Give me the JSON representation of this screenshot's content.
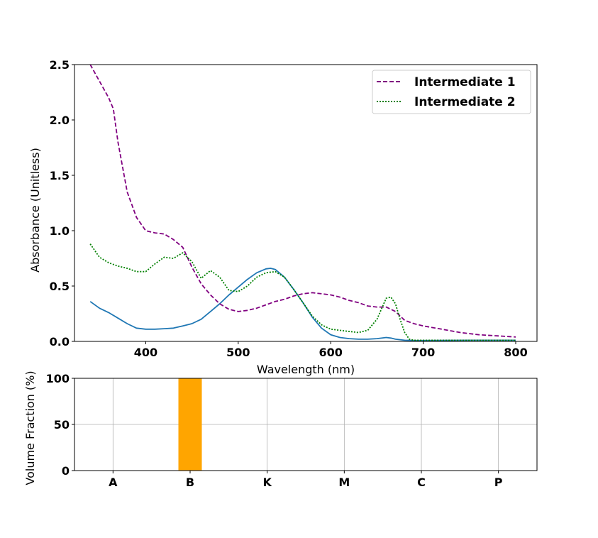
{
  "chart_data": [
    {
      "type": "line",
      "xlabel": "Wavelength (nm)",
      "ylabel": "Absorbance (Unitless)",
      "xlim": [
        323,
        823
      ],
      "ylim": [
        0,
        2.5
      ],
      "x_ticks": [
        400,
        500,
        600,
        700,
        800
      ],
      "y_ticks": [
        0.0,
        0.5,
        1.0,
        1.5,
        2.0,
        2.5
      ],
      "x_tick_labels": [
        "400",
        "500",
        "600",
        "700",
        "800"
      ],
      "y_tick_labels": [
        "0.0",
        "0.5",
        "1.0",
        "1.5",
        "2.0",
        "2.5"
      ],
      "grid": false,
      "legend_position": "top-right",
      "series": [
        {
          "name": "",
          "color": "#1f77b4",
          "style": "solid",
          "x": [
            340,
            350,
            360,
            370,
            380,
            390,
            400,
            410,
            420,
            430,
            440,
            450,
            460,
            470,
            480,
            490,
            500,
            510,
            520,
            530,
            535,
            540,
            550,
            560,
            570,
            580,
            590,
            600,
            610,
            620,
            630,
            640,
            650,
            660,
            665,
            670,
            680,
            690,
            700,
            750,
            800
          ],
          "y": [
            0.36,
            0.3,
            0.26,
            0.21,
            0.16,
            0.12,
            0.11,
            0.11,
            0.115,
            0.12,
            0.14,
            0.16,
            0.2,
            0.27,
            0.34,
            0.42,
            0.49,
            0.56,
            0.62,
            0.655,
            0.66,
            0.65,
            0.58,
            0.47,
            0.35,
            0.22,
            0.12,
            0.06,
            0.035,
            0.025,
            0.02,
            0.02,
            0.025,
            0.035,
            0.03,
            0.02,
            0.01,
            0.008,
            0.008,
            0.01,
            0.01
          ]
        },
        {
          "name": "Intermediate 1",
          "color": "#800080",
          "style": "dashed",
          "x": [
            340,
            350,
            360,
            365,
            370,
            380,
            390,
            400,
            410,
            420,
            430,
            440,
            450,
            460,
            470,
            480,
            490,
            500,
            510,
            520,
            530,
            540,
            550,
            560,
            570,
            580,
            590,
            600,
            610,
            620,
            630,
            640,
            650,
            660,
            670,
            680,
            690,
            700,
            720,
            740,
            760,
            780,
            800
          ],
          "y": [
            2.5,
            2.35,
            2.2,
            2.1,
            1.8,
            1.35,
            1.12,
            1.0,
            0.98,
            0.97,
            0.92,
            0.85,
            0.67,
            0.52,
            0.42,
            0.34,
            0.29,
            0.27,
            0.28,
            0.3,
            0.33,
            0.36,
            0.38,
            0.41,
            0.43,
            0.44,
            0.43,
            0.42,
            0.4,
            0.37,
            0.35,
            0.32,
            0.31,
            0.31,
            0.27,
            0.19,
            0.16,
            0.14,
            0.11,
            0.08,
            0.06,
            0.05,
            0.04
          ]
        },
        {
          "name": "Intermediate 2",
          "color": "#008000",
          "style": "dotted",
          "x": [
            340,
            350,
            360,
            370,
            380,
            390,
            400,
            410,
            420,
            430,
            440,
            450,
            460,
            470,
            480,
            490,
            500,
            510,
            520,
            530,
            540,
            550,
            560,
            570,
            580,
            590,
            600,
            610,
            620,
            630,
            640,
            650,
            660,
            665,
            670,
            675,
            680,
            685,
            690,
            700,
            750,
            800
          ],
          "y": [
            0.88,
            0.76,
            0.71,
            0.68,
            0.66,
            0.63,
            0.63,
            0.7,
            0.76,
            0.75,
            0.8,
            0.72,
            0.57,
            0.64,
            0.58,
            0.46,
            0.45,
            0.5,
            0.58,
            0.62,
            0.63,
            0.58,
            0.47,
            0.35,
            0.23,
            0.15,
            0.11,
            0.1,
            0.09,
            0.08,
            0.1,
            0.2,
            0.39,
            0.4,
            0.34,
            0.2,
            0.08,
            0.02,
            0.01,
            0.01,
            0.01,
            0.01
          ]
        }
      ]
    },
    {
      "type": "bar",
      "ylabel": "Volume Fraction (%)",
      "categories": [
        "A",
        "B",
        "K",
        "M",
        "C",
        "P"
      ],
      "values": [
        0,
        100,
        0,
        0,
        0,
        0
      ],
      "ylim": [
        0,
        100
      ],
      "y_ticks": [
        0,
        50,
        100
      ],
      "y_tick_labels": [
        "0",
        "50",
        "100"
      ],
      "grid": true,
      "bar_color": "#ffa500"
    }
  ]
}
